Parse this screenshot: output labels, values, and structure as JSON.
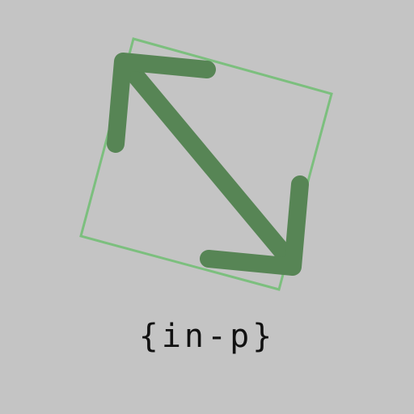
{
  "caption": {
    "text": "{in-p}"
  },
  "icon": {
    "name": "resize-diagonal-arrow-icon",
    "frame_color": "#7cbf7e",
    "arrow_color": "#578555"
  },
  "background_color": "#c4c4c4"
}
